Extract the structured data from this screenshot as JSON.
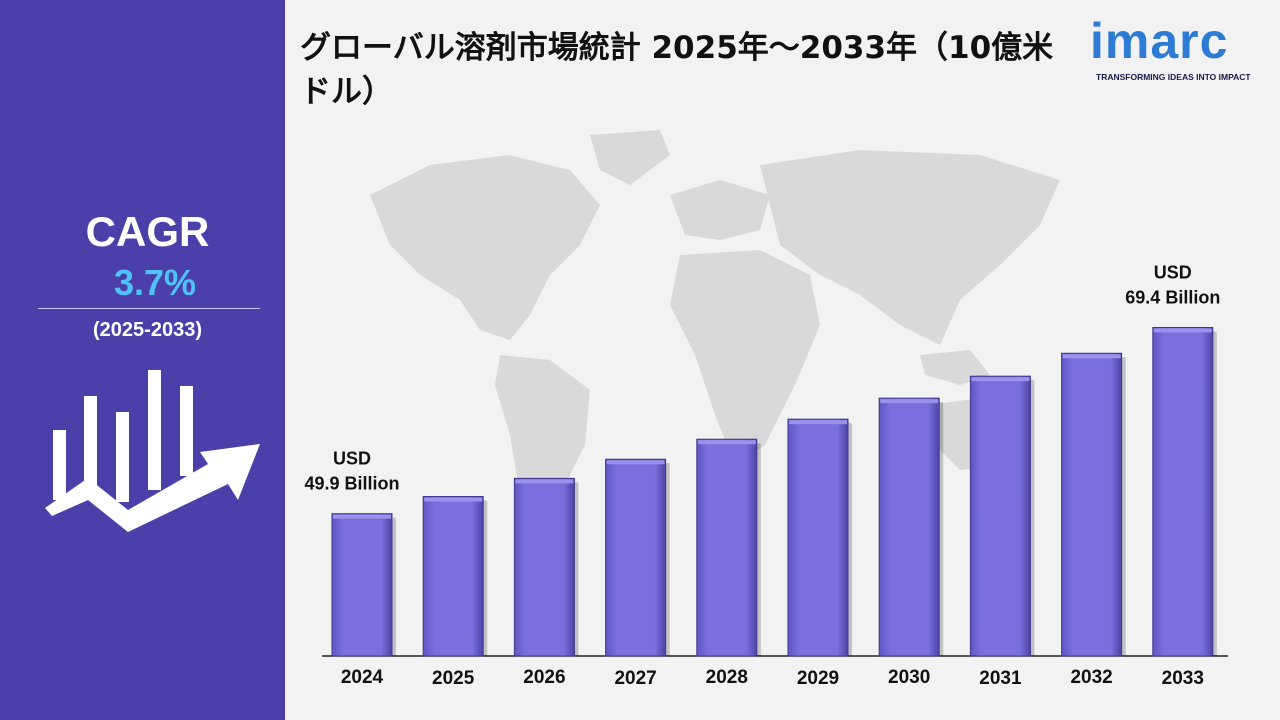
{
  "title": "グローバル溶剤市場統計 2025年～2033年（10億米ドル）",
  "logo": {
    "name": "imarc",
    "tagline": "TRANSFORMING IDEAS INTO IMPACT"
  },
  "cagr": {
    "label": "CAGR",
    "value": "3.7%",
    "period": "(2025-2033)"
  },
  "annotations": {
    "first": {
      "line1": "USD",
      "line2": "49.9 Billion"
    },
    "last": {
      "line1": "USD",
      "line2": "69.4 Billion"
    }
  },
  "colors": {
    "bar": "#7a6fdc",
    "bar_top": "#9b92ee",
    "panel": "#4b3faa",
    "cagr_value": "#4fc3f7",
    "map": "#d9d9d9",
    "logo": "#2e7bd6"
  },
  "chart_data": {
    "type": "bar",
    "categories": [
      "2024",
      "2025",
      "2026",
      "2027",
      "2028",
      "2029",
      "2030",
      "2031",
      "2032",
      "2033"
    ],
    "values": [
      49.9,
      51.7,
      53.6,
      55.6,
      57.7,
      59.8,
      62.0,
      64.3,
      66.7,
      69.4
    ],
    "title": "グローバル溶剤市場統計 2025年～2033年（10億米ドル）",
    "xlabel": "",
    "ylabel": "",
    "grid": false,
    "legend": "none"
  }
}
